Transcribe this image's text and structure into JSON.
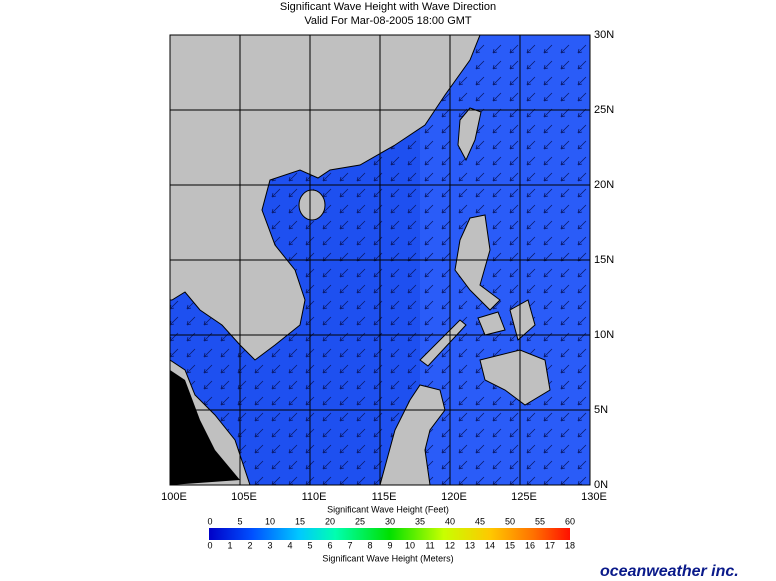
{
  "header": {
    "title": "Significant Wave Height with Wave Direction",
    "subtitle": "Valid For Mar-08-2005 18:00 GMT"
  },
  "map": {
    "lon_labels": [
      "100E",
      "105E",
      "110E",
      "115E",
      "120E",
      "125E",
      "130E"
    ],
    "lat_labels": [
      "30N",
      "25N",
      "20N",
      "15N",
      "10N",
      "5N",
      "0N"
    ]
  },
  "colorbar": {
    "feet_title": "Significant Wave Height (Feet)",
    "feet_ticks": [
      0,
      5,
      10,
      15,
      20,
      25,
      30,
      35,
      40,
      45,
      50,
      55,
      60
    ],
    "meters_title": "Significant Wave Height (Meters)",
    "meters_ticks": [
      0,
      1,
      2,
      3,
      4,
      5,
      6,
      7,
      8,
      9,
      10,
      11,
      12,
      13,
      14,
      15,
      16,
      17,
      18
    ]
  },
  "footer": {
    "logo": "oceanweather inc."
  }
}
